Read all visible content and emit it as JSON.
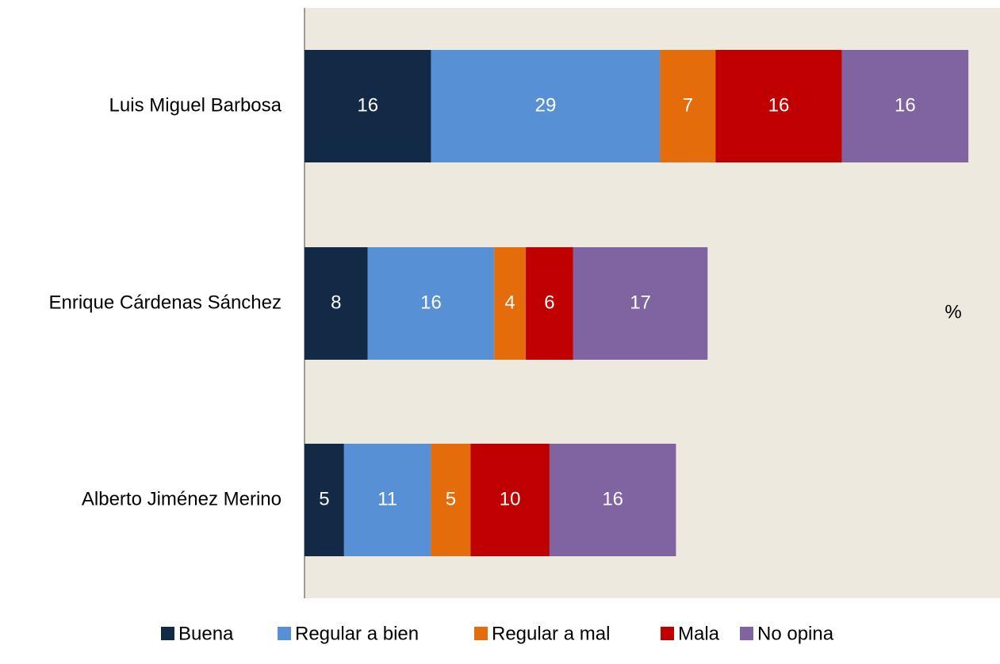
{
  "chart_data": {
    "type": "stacked_barh",
    "categories": [
      "Luis Miguel Barbosa",
      "Enrique Cárdenas Sánchez",
      "Alberto Jiménez Merino"
    ],
    "series": [
      {
        "name": "Buena",
        "color": "#132a47",
        "values": [
          16,
          8,
          5
        ]
      },
      {
        "name": "Regular a bien",
        "color": "#5890d6",
        "values": [
          29,
          16,
          11
        ]
      },
      {
        "name": "Regular a mal",
        "color": "#e46c0a",
        "values": [
          7,
          4,
          5
        ]
      },
      {
        "name": "Mala",
        "color": "#c00000",
        "values": [
          16,
          6,
          10
        ]
      },
      {
        "name": "No opina",
        "color": "#8064a2",
        "values": [
          16,
          17,
          16
        ]
      }
    ],
    "unit_label": "%",
    "xlim": [
      0,
      88
    ],
    "legend": "bottom"
  }
}
